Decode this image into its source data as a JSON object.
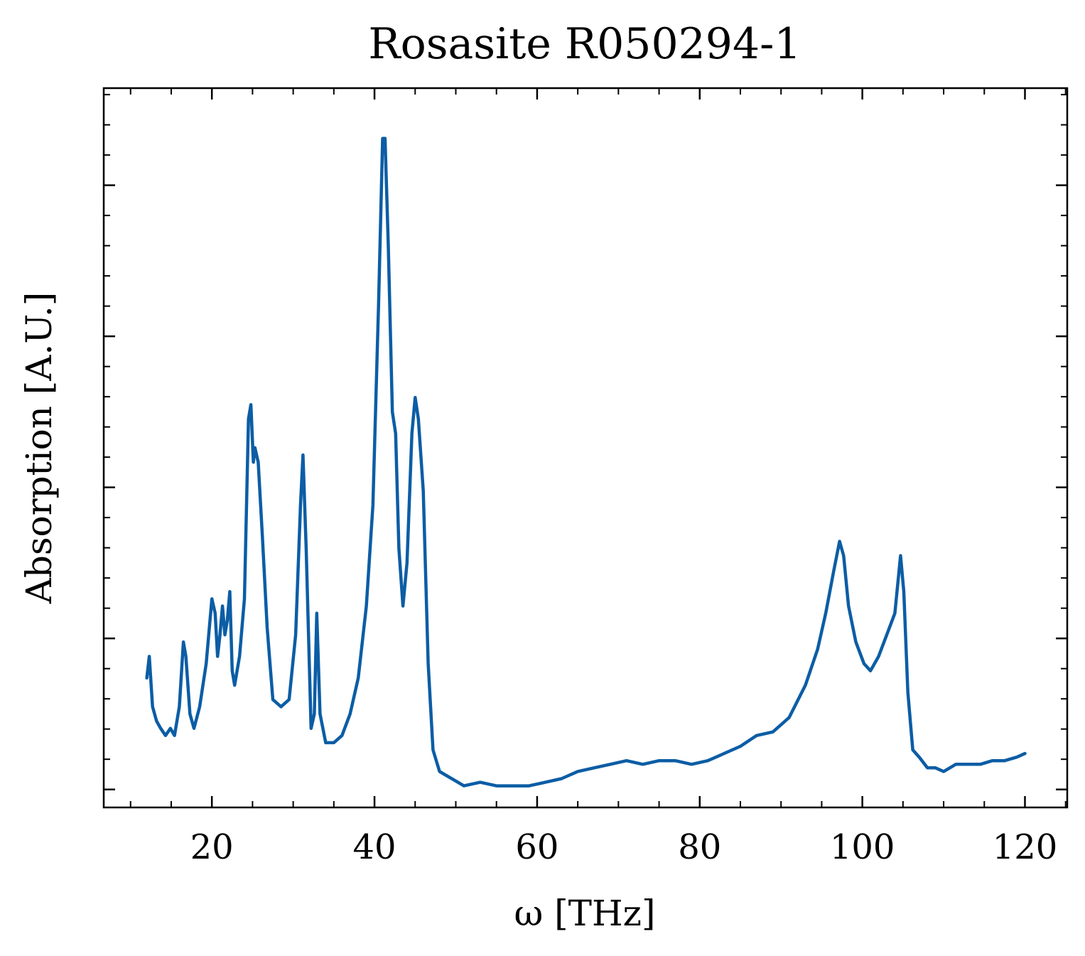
{
  "chart_data": {
    "type": "line",
    "title": "Rosasite R050294-1",
    "xlabel": "ω [THz]",
    "ylabel": "Absorption [A.U.]",
    "xlim": [
      6.7,
      125.2
    ],
    "ylim": [
      0.0,
      1.0
    ],
    "xticks": [
      20,
      40,
      60,
      80,
      100,
      120
    ],
    "xtick_labels": [
      "20",
      "40",
      "60",
      "80",
      "100",
      "120"
    ],
    "yticks": [
      0.025,
      0.235,
      0.445,
      0.655,
      0.865
    ],
    "ytick_labels": [],
    "grid": false,
    "legend": "none",
    "series": [
      {
        "color": "#0C5DA5",
        "points": [
          [
            12.0,
            0.18
          ],
          [
            12.3,
            0.21
          ],
          [
            12.7,
            0.14
          ],
          [
            13.2,
            0.12
          ],
          [
            13.7,
            0.11
          ],
          [
            14.3,
            0.1
          ],
          [
            14.9,
            0.11
          ],
          [
            15.4,
            0.1
          ],
          [
            16.0,
            0.14
          ],
          [
            16.5,
            0.23
          ],
          [
            16.8,
            0.21
          ],
          [
            17.3,
            0.13
          ],
          [
            17.8,
            0.11
          ],
          [
            18.5,
            0.14
          ],
          [
            19.3,
            0.2
          ],
          [
            20.0,
            0.29
          ],
          [
            20.4,
            0.27
          ],
          [
            20.7,
            0.21
          ],
          [
            21.0,
            0.24
          ],
          [
            21.3,
            0.28
          ],
          [
            21.6,
            0.24
          ],
          [
            21.9,
            0.26
          ],
          [
            22.2,
            0.3
          ],
          [
            22.5,
            0.19
          ],
          [
            22.8,
            0.17
          ],
          [
            23.4,
            0.21
          ],
          [
            24.0,
            0.29
          ],
          [
            24.5,
            0.54
          ],
          [
            24.8,
            0.56
          ],
          [
            25.1,
            0.48
          ],
          [
            25.3,
            0.5
          ],
          [
            25.7,
            0.48
          ],
          [
            26.2,
            0.38
          ],
          [
            26.8,
            0.25
          ],
          [
            27.5,
            0.15
          ],
          [
            28.5,
            0.14
          ],
          [
            29.5,
            0.15
          ],
          [
            30.3,
            0.24
          ],
          [
            30.9,
            0.42
          ],
          [
            31.2,
            0.49
          ],
          [
            31.6,
            0.36
          ],
          [
            32.2,
            0.11
          ],
          [
            32.6,
            0.13
          ],
          [
            32.9,
            0.27
          ],
          [
            33.3,
            0.13
          ],
          [
            34.0,
            0.09
          ],
          [
            35.0,
            0.09
          ],
          [
            36.0,
            0.1
          ],
          [
            37.0,
            0.13
          ],
          [
            38.0,
            0.18
          ],
          [
            39.0,
            0.28
          ],
          [
            39.8,
            0.42
          ],
          [
            40.5,
            0.7
          ],
          [
            41.0,
            0.93
          ],
          [
            41.3,
            0.93
          ],
          [
            41.7,
            0.78
          ],
          [
            42.2,
            0.55
          ],
          [
            42.6,
            0.52
          ],
          [
            43.0,
            0.36
          ],
          [
            43.5,
            0.28
          ],
          [
            44.0,
            0.34
          ],
          [
            44.6,
            0.52
          ],
          [
            45.0,
            0.57
          ],
          [
            45.4,
            0.54
          ],
          [
            46.0,
            0.44
          ],
          [
            46.6,
            0.2
          ],
          [
            47.2,
            0.08
          ],
          [
            48.0,
            0.05
          ],
          [
            49.5,
            0.04
          ],
          [
            51.0,
            0.03
          ],
          [
            53.0,
            0.035
          ],
          [
            55.0,
            0.03
          ],
          [
            57.0,
            0.03
          ],
          [
            59.0,
            0.03
          ],
          [
            61.0,
            0.035
          ],
          [
            63.0,
            0.04
          ],
          [
            65.0,
            0.05
          ],
          [
            67.0,
            0.055
          ],
          [
            69.0,
            0.06
          ],
          [
            71.0,
            0.065
          ],
          [
            73.0,
            0.06
          ],
          [
            75.0,
            0.065
          ],
          [
            77.0,
            0.065
          ],
          [
            79.0,
            0.06
          ],
          [
            81.0,
            0.065
          ],
          [
            83.0,
            0.075
          ],
          [
            85.0,
            0.085
          ],
          [
            87.0,
            0.1
          ],
          [
            89.0,
            0.105
          ],
          [
            91.0,
            0.125
          ],
          [
            93.0,
            0.17
          ],
          [
            94.5,
            0.22
          ],
          [
            95.5,
            0.27
          ],
          [
            96.5,
            0.33
          ],
          [
            97.2,
            0.37
          ],
          [
            97.7,
            0.35
          ],
          [
            98.3,
            0.28
          ],
          [
            99.2,
            0.23
          ],
          [
            100.2,
            0.2
          ],
          [
            101.0,
            0.19
          ],
          [
            102.0,
            0.21
          ],
          [
            103.0,
            0.24
          ],
          [
            104.0,
            0.27
          ],
          [
            104.7,
            0.35
          ],
          [
            105.1,
            0.3
          ],
          [
            105.6,
            0.16
          ],
          [
            106.2,
            0.08
          ],
          [
            107.0,
            0.07
          ],
          [
            108.0,
            0.055
          ],
          [
            109.0,
            0.055
          ],
          [
            110.0,
            0.05
          ],
          [
            111.5,
            0.06
          ],
          [
            113.0,
            0.06
          ],
          [
            114.5,
            0.06
          ],
          [
            116.0,
            0.065
          ],
          [
            117.5,
            0.065
          ],
          [
            119.0,
            0.07
          ],
          [
            120.0,
            0.075
          ]
        ]
      }
    ]
  }
}
